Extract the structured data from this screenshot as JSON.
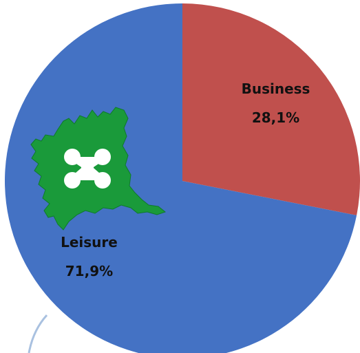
{
  "chart_data": {
    "type": "pie",
    "categories": [
      "Business",
      "Leisure"
    ],
    "values": [
      28.1,
      71.9
    ],
    "value_labels": [
      "28,1%",
      "71,9%"
    ],
    "colors": [
      "#c0504d",
      "#4472c4"
    ],
    "start_angle": 0,
    "direction": "clockwise"
  }
}
